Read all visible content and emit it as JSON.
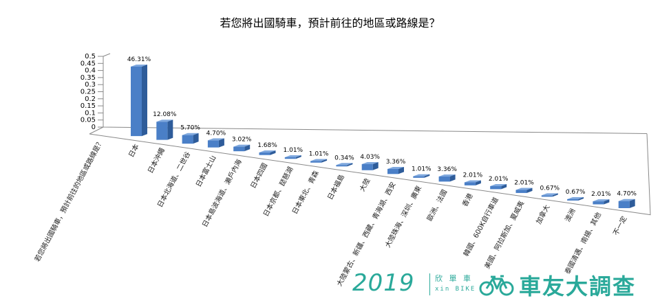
{
  "chart_data": {
    "type": "bar",
    "title": "若您將出國騎車，預計前往的地區或路線是？",
    "xlabel": "若您將出國騎車，預計前往的地區或路線是？",
    "ylabel": "",
    "ylim": [
      0,
      0.5
    ],
    "yticks": [
      "0.5",
      "0.45",
      "0.4",
      "0.35",
      "0.3",
      "0.25",
      "0.2",
      "0.15",
      "0.1",
      "0.05",
      "0"
    ],
    "bar_color": "#4a7fc7",
    "categories": [
      "日本",
      "日本沖繩",
      "日本北海道、二世谷",
      "日本富士山",
      "日本島波海道、瀨戶內海",
      "日本四國",
      "日本京都、琵琶湖",
      "日本東北、青森",
      "日本福島",
      "大陸",
      "大陸蒙古、新疆、西藏、青海湖、西安",
      "大陸珠海、深圳、廣東",
      "歐洲、法國",
      "香港",
      "韓國、600K自行車道",
      "美國、阿拉斯加、夏威夷",
      "加拿大",
      "澳洲",
      "泰國清邁、南揚、其他",
      "不一定"
    ],
    "values": [
      0.4631,
      0.1208,
      0.057,
      0.047,
      0.0302,
      0.0168,
      0.0101,
      0.0101,
      0.0034,
      0.0403,
      0.0336,
      0.0101,
      0.0336,
      0.0201,
      0.0201,
      0.0201,
      0.0067,
      0.0067,
      0.0201,
      0.047
    ],
    "value_labels": [
      "46.31%",
      "12.08%",
      "5.70%",
      "4.70%",
      "3.02%",
      "1.68%",
      "1.01%",
      "1.01%",
      "0.34%",
      "4.03%",
      "3.36%",
      "1.01%",
      "3.36%",
      "2.01%",
      "2.01%",
      "2.01%",
      "0.67%",
      "0.67%",
      "2.01%",
      "4.70%"
    ]
  },
  "brand": {
    "year": "2019",
    "cn_small": "欣 單 車",
    "en_small": "xin BIKE",
    "event": "車友大調查",
    "accent_color": "#2aa99a"
  }
}
